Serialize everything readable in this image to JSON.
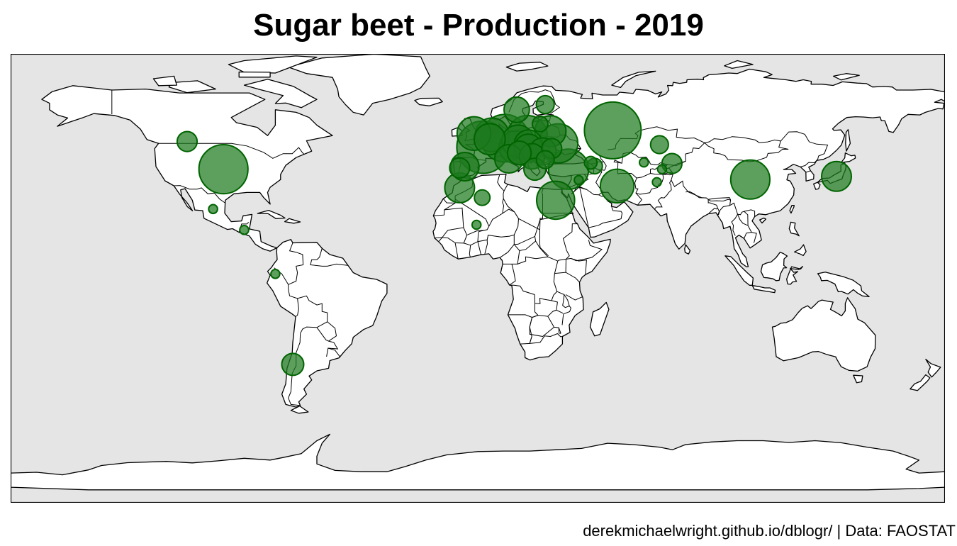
{
  "title": "Sugar beet - Production - 2019",
  "caption": "derekmichaelwright.github.io/dblogr/ | Data: FAOSTAT",
  "colors": {
    "ocean": "#e5e5e5",
    "land": "#ffffff",
    "border": "#000000",
    "bubble_fill": "#1f7a1f",
    "bubble_stroke": "#006400"
  },
  "chart_data": {
    "type": "scatter",
    "projection": "equirectangular",
    "x_range": [
      -180,
      180
    ],
    "y_range": [
      -90,
      83.6
    ],
    "size_encoding": "production",
    "points": [
      {
        "lon": -98,
        "lat": 39,
        "size": 30
      },
      {
        "lon": -112,
        "lat": 49.7,
        "size": 5
      },
      {
        "lon": -102,
        "lat": 23.6,
        "size": 1
      },
      {
        "lon": -71.3,
        "lat": -36.5,
        "size": 6
      },
      {
        "lon": -5,
        "lat": 40,
        "size": 10
      },
      {
        "lon": 2,
        "lat": 47.5,
        "size": 34
      },
      {
        "lon": 10.4,
        "lat": 51,
        "size": 28
      },
      {
        "lon": 5.5,
        "lat": 52.3,
        "size": 14
      },
      {
        "lon": -1.5,
        "lat": 52.8,
        "size": 14
      },
      {
        "lon": 4.6,
        "lat": 50.6,
        "size": 12
      },
      {
        "lon": 19.1,
        "lat": 52,
        "size": 20
      },
      {
        "lon": 14.5,
        "lat": 47.5,
        "size": 13
      },
      {
        "lon": 15.5,
        "lat": 49.8,
        "size": 13
      },
      {
        "lon": 19.5,
        "lat": 48.7,
        "size": 10
      },
      {
        "lon": 19.5,
        "lat": 47.1,
        "size": 10
      },
      {
        "lon": 12,
        "lat": 43,
        "size": 10
      },
      {
        "lon": 16,
        "lat": 45.3,
        "size": 7
      },
      {
        "lon": 20.9,
        "lat": 44,
        "size": 8
      },
      {
        "lon": 25,
        "lat": 45.9,
        "size": 9
      },
      {
        "lon": 31,
        "lat": 49,
        "size": 19
      },
      {
        "lon": 28,
        "lat": 53.7,
        "size": 12
      },
      {
        "lon": 26,
        "lat": 42.7,
        "size": 4
      },
      {
        "lon": 28.5,
        "lat": 47,
        "size": 5
      },
      {
        "lon": 15,
        "lat": 62,
        "size": 8
      },
      {
        "lon": 26,
        "lat": 64,
        "size": 4
      },
      {
        "lon": 24,
        "lat": 56.5,
        "size": 3
      },
      {
        "lon": 22,
        "lat": 39,
        "size": 6
      },
      {
        "lon": 35,
        "lat": 39,
        "size": 20
      },
      {
        "lon": 43.5,
        "lat": 41.5,
        "size": 2
      },
      {
        "lon": 45,
        "lat": 40.2,
        "size": 3
      },
      {
        "lon": 52,
        "lat": 54,
        "size": 40
      },
      {
        "lon": 70,
        "lat": 48.5,
        "size": 4
      },
      {
        "lon": 74.8,
        "lat": 41.2,
        "size": 5
      },
      {
        "lon": 53.7,
        "lat": 32.5,
        "size": 14
      },
      {
        "lon": 64,
        "lat": 41.6,
        "size": 1
      },
      {
        "lon": 69,
        "lat": 34,
        "size": 1
      },
      {
        "lon": 71,
        "lat": 39,
        "size": 1
      },
      {
        "lon": 38.9,
        "lat": 34.8,
        "size": 1
      },
      {
        "lon": 30,
        "lat": 27,
        "size": 18
      },
      {
        "lon": -7,
        "lat": 31.8,
        "size": 11
      },
      {
        "lon": 1.7,
        "lat": 28,
        "size": 3
      },
      {
        "lon": 105,
        "lat": 35,
        "size": 19
      },
      {
        "lon": 138.2,
        "lat": 36.2,
        "size": 11
      },
      {
        "lon": -0.5,
        "lat": 17.5,
        "size": 1
      },
      {
        "lon": -7,
        "lat": 39.5,
        "size": 5
      },
      {
        "lon": -90,
        "lat": 15.5,
        "size": 1
      },
      {
        "lon": -78,
        "lat": -1.5,
        "size": 1
      }
    ]
  }
}
